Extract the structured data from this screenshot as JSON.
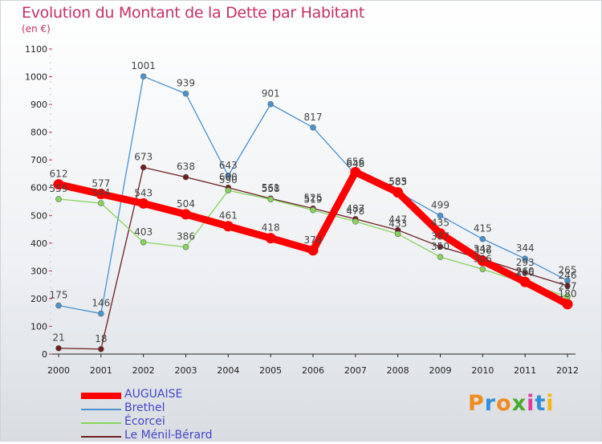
{
  "header": {
    "title": "Evolution du Montant de la Dette par Habitant",
    "subtitle": "(en €)"
  },
  "brand": {
    "letters": [
      "P",
      "r",
      "o",
      "x",
      "i",
      "t",
      "i"
    ],
    "colors": [
      "#f08c1e",
      "#2f8fd8",
      "#f08c1e",
      "#4aaa2e",
      "#e23a9a",
      "#2f8fd8",
      "#f2b511"
    ]
  },
  "chart_data": {
    "type": "line",
    "title": "Evolution du Montant de la Dette par Habitant",
    "ylabel": "(en €)",
    "xlabel": "",
    "ylim": [
      0,
      1100
    ],
    "yticks": [
      0,
      100,
      200,
      300,
      400,
      500,
      600,
      700,
      800,
      900,
      1000,
      1100
    ],
    "categories": [
      "2000",
      "2001",
      "2002",
      "2003",
      "2004",
      "2005",
      "2006",
      "2007",
      "2008",
      "2009",
      "2010",
      "2011",
      "2012"
    ],
    "grid": false,
    "legend_position": "bottom-left",
    "series": [
      {
        "name": "AUGUAISE",
        "color": "#ff0000",
        "values": [
          612,
          577,
          543,
          504,
          461,
          418,
          374,
          656,
          583,
          435,
          336,
          260,
          180
        ]
      },
      {
        "name": "Brethel",
        "color": "#4a92d0",
        "values": [
          175,
          146,
          1001,
          939,
          643,
          901,
          817,
          648,
          585,
          499,
          415,
          344,
          265
        ]
      },
      {
        "name": "Écorcei",
        "color": "#86d45a",
        "values": [
          559,
          544,
          403,
          386,
          590,
          558,
          519,
          478,
          433,
          350,
          306,
          256,
          207
        ]
      },
      {
        "name": "Le Ménil-Bérard",
        "color": "#6e1e22",
        "values": [
          21,
          18,
          673,
          638,
          600,
          561,
          525,
          487,
          447,
          387,
          342,
          293,
          246
        ]
      }
    ]
  }
}
